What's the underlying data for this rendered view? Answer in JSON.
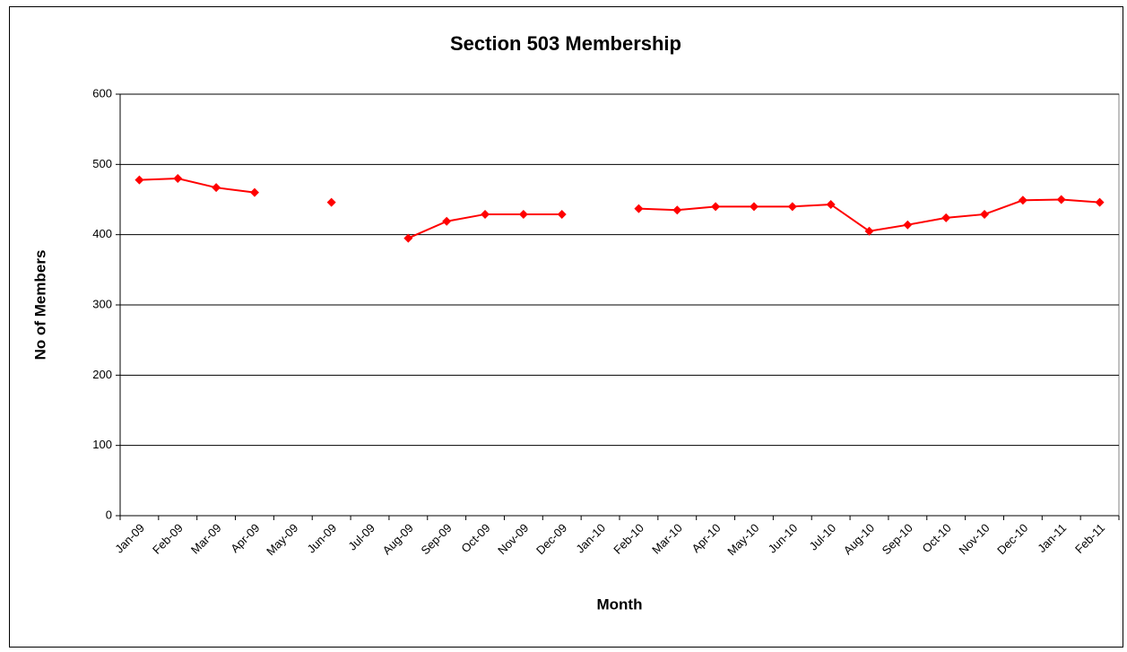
{
  "chart_data": {
    "type": "line",
    "title": "Section 503 Membership",
    "x_label": "Month",
    "y_label": "No of Members",
    "categories": [
      "Jan-09",
      "Feb-09",
      "Mar-09",
      "Apr-09",
      "May-09",
      "Jun-09",
      "Jul-09",
      "Aug-09",
      "Sep-09",
      "Oct-09",
      "Nov-09",
      "Dec-09",
      "Jan-10",
      "Feb-10",
      "Mar-10",
      "Apr-10",
      "May-10",
      "Jun-10",
      "Jul-10",
      "Aug-10",
      "Sep-10",
      "Oct-10",
      "Nov-10",
      "Dec-10",
      "Jan-11",
      "Feb-11"
    ],
    "series": [
      {
        "color": "#ff0000",
        "values": [
          478,
          480,
          467,
          460,
          null,
          446,
          null,
          395,
          419,
          429,
          429,
          429,
          null,
          437,
          435,
          440,
          440,
          440,
          443,
          405,
          414,
          424,
          429,
          449,
          450,
          446
        ]
      }
    ],
    "ylim": [
      0,
      600
    ],
    "yticks": [
      0,
      100,
      200,
      300,
      400,
      500,
      600
    ],
    "grid": true
  }
}
